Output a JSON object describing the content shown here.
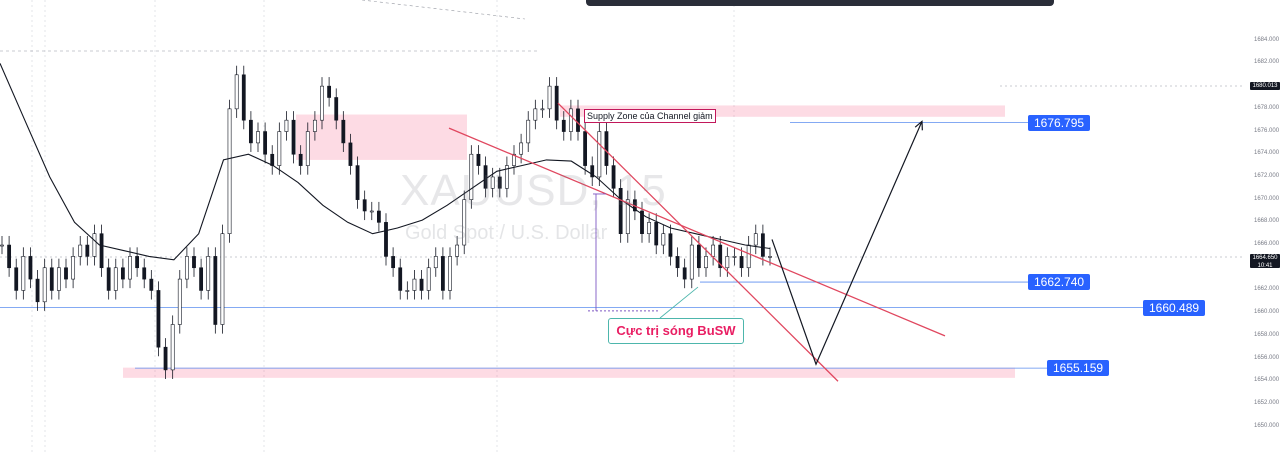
{
  "chart_data": {
    "type": "candlestick",
    "symbol": "XAUUSD",
    "interval": "15",
    "instrument_name": "Gold Spot / U.S. Dollar",
    "y_axis": {
      "ylim": [
        1649.0,
        1685.0
      ],
      "ticks": [
        "1684.000",
        "1682.000",
        "1678.000",
        "1676.000",
        "1674.000",
        "1672.000",
        "1670.000",
        "1668.000",
        "1666.000",
        "1662.000",
        "1660.000",
        "1658.000",
        "1656.000",
        "1654.000",
        "1652.000",
        "1650.000"
      ],
      "last_price_tag": "1680.013",
      "current_price_tag": "1664.650",
      "current_time_tag": "10:41"
    },
    "annotations": {
      "supply_zone_label": "Supply Zone của Channel giảm",
      "callout_label": "Cực trị sóng BuSW"
    },
    "levels": [
      {
        "label": "1676.795",
        "value": 1676.795
      },
      {
        "label": "1662.740",
        "value": 1662.74
      },
      {
        "label": "1660.489",
        "value": 1660.489
      },
      {
        "label": "1655.159",
        "value": 1655.159
      }
    ],
    "zones": [
      {
        "name": "upper-left-zone",
        "from": 1673.5,
        "to": 1677.5,
        "x_start": 296,
        "x_end": 467
      },
      {
        "name": "supply-zone",
        "from": 1677.3,
        "to": 1678.3,
        "x_start": 560,
        "x_end": 1005
      },
      {
        "name": "bottom-zone",
        "from": 1654.3,
        "to": 1655.2,
        "x_start": 123,
        "x_end": 1015
      }
    ],
    "channel": {
      "upper": {
        "x1": 449,
        "y1": 1676.3,
        "x2": 945,
        "y2": 1658.0
      },
      "lower": {
        "x1": 558,
        "y1": 1678.5,
        "x2": 838,
        "y2": 1654.0
      }
    },
    "projection": [
      {
        "x": 772,
        "y": 1666.5
      },
      {
        "x": 816,
        "y": 1655.5
      },
      {
        "x": 922,
        "y": 1676.9
      }
    ],
    "close_series": [
      1666,
      1664,
      1662,
      1665,
      1663,
      1661,
      1664,
      1662,
      1664,
      1663,
      1665,
      1666,
      1665,
      1667,
      1664,
      1662,
      1664,
      1663,
      1665,
      1664,
      1663,
      1662,
      1657,
      1655,
      1659,
      1663,
      1665,
      1664,
      1662,
      1665,
      1659,
      1667,
      1678,
      1681,
      1677,
      1675,
      1676,
      1674,
      1673,
      1676,
      1677,
      1674,
      1673,
      1676,
      1677,
      1680,
      1679,
      1677,
      1675,
      1673,
      1670,
      1669,
      1669,
      1668,
      1665,
      1664,
      1662,
      1662,
      1663,
      1662,
      1664,
      1665,
      1662,
      1665,
      1666,
      1670,
      1674,
      1673,
      1671,
      1672,
      1671,
      1673,
      1674,
      1675,
      1677,
      1678,
      1678,
      1680,
      1677,
      1676,
      1678,
      1676,
      1673,
      1672,
      1676,
      1673,
      1671,
      1667,
      1670,
      1669,
      1667,
      1668,
      1666,
      1667,
      1665,
      1664,
      1663,
      1666,
      1664,
      1665,
      1666,
      1664,
      1665,
      1665,
      1664,
      1666,
      1667,
      1665,
      1665
    ],
    "ma_series": [
      1682,
      1677,
      1672,
      1668,
      1666,
      1665.5,
      1665,
      1664.7,
      1667,
      1673.5,
      1674,
      1673,
      1671.5,
      1669.5,
      1668,
      1667,
      1667.5,
      1668.2,
      1669.5,
      1671,
      1672.5,
      1673,
      1673.5,
      1673.4,
      1672,
      1670,
      1668.5,
      1667.5,
      1667,
      1666.5,
      1666,
      1665.7
    ]
  }
}
